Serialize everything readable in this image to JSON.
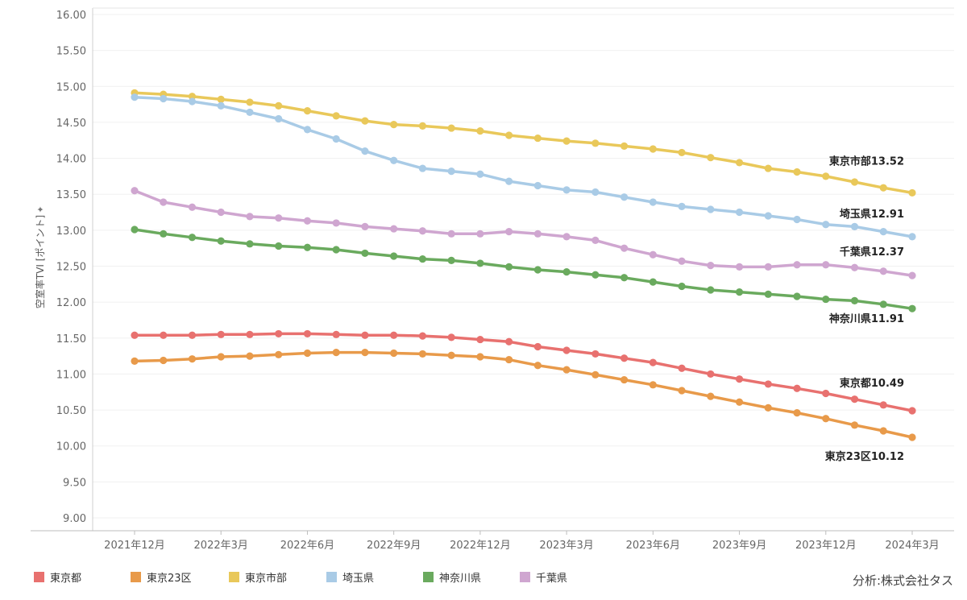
{
  "chart_data": {
    "type": "line",
    "ylabel": "空室率TVI [ポイント]",
    "ylim": [
      8.8,
      16.1
    ],
    "yticks": [
      "16.00",
      "15.50",
      "15.00",
      "14.50",
      "14.00",
      "13.50",
      "13.00",
      "12.50",
      "12.00",
      "11.50",
      "11.00",
      "10.50",
      "10.00",
      "9.50",
      "9.00"
    ],
    "x": [
      "2021-12",
      "2022-01",
      "2022-02",
      "2022-03",
      "2022-04",
      "2022-05",
      "2022-06",
      "2022-07",
      "2022-08",
      "2022-09",
      "2022-10",
      "2022-11",
      "2022-12",
      "2023-01",
      "2023-02",
      "2023-03",
      "2023-04",
      "2023-05",
      "2023-06",
      "2023-07",
      "2023-08",
      "2023-09",
      "2023-10",
      "2023-11",
      "2023-12",
      "2024-01",
      "2024-02",
      "2024-03"
    ],
    "xticks": [
      {
        "index": 0,
        "label": "2021年12月"
      },
      {
        "index": 3,
        "label": "2022年3月"
      },
      {
        "index": 6,
        "label": "2022年6月"
      },
      {
        "index": 9,
        "label": "2022年9月"
      },
      {
        "index": 12,
        "label": "2022年12月"
      },
      {
        "index": 15,
        "label": "2023年3月"
      },
      {
        "index": 18,
        "label": "2023年6月"
      },
      {
        "index": 21,
        "label": "2023年9月"
      },
      {
        "index": 24,
        "label": "2023年12月"
      },
      {
        "index": 27,
        "label": "2024年3月"
      }
    ],
    "series": [
      {
        "name": "東京都",
        "color": "#e8716f",
        "end_label": "東京都10.49",
        "values": [
          11.54,
          11.54,
          11.54,
          11.55,
          11.55,
          11.56,
          11.56,
          11.55,
          11.54,
          11.54,
          11.53,
          11.51,
          11.48,
          11.45,
          11.38,
          11.33,
          11.28,
          11.22,
          11.16,
          11.08,
          11.0,
          10.93,
          10.86,
          10.8,
          10.73,
          10.65,
          10.57,
          10.49
        ]
      },
      {
        "name": "東京23区",
        "color": "#e89a4a",
        "end_label": "東京23区10.12",
        "values": [
          11.18,
          11.19,
          11.21,
          11.24,
          11.25,
          11.27,
          11.29,
          11.3,
          11.3,
          11.29,
          11.28,
          11.26,
          11.24,
          11.2,
          11.12,
          11.06,
          10.99,
          10.92,
          10.85,
          10.77,
          10.69,
          10.61,
          10.53,
          10.46,
          10.38,
          10.29,
          10.21,
          10.12
        ]
      },
      {
        "name": "東京市部",
        "color": "#e9c85a",
        "end_label": "東京市部13.52",
        "values": [
          14.91,
          14.89,
          14.86,
          14.82,
          14.78,
          14.73,
          14.66,
          14.59,
          14.52,
          14.47,
          14.45,
          14.42,
          14.38,
          14.32,
          14.28,
          14.24,
          14.21,
          14.17,
          14.13,
          14.08,
          14.01,
          13.94,
          13.86,
          13.81,
          13.75,
          13.67,
          13.59,
          13.52
        ]
      },
      {
        "name": "埼玉県",
        "color": "#a9cbe6",
        "end_label": "埼玉県12.91",
        "values": [
          14.85,
          14.83,
          14.79,
          14.73,
          14.64,
          14.55,
          14.4,
          14.27,
          14.1,
          13.97,
          13.86,
          13.82,
          13.78,
          13.68,
          13.62,
          13.56,
          13.53,
          13.46,
          13.39,
          13.33,
          13.29,
          13.25,
          13.2,
          13.15,
          13.08,
          13.05,
          12.98,
          12.91
        ]
      },
      {
        "name": "神奈川県",
        "color": "#6aaa5e",
        "end_label": "神奈川県11.91",
        "values": [
          13.01,
          12.95,
          12.9,
          12.85,
          12.81,
          12.78,
          12.76,
          12.73,
          12.68,
          12.64,
          12.6,
          12.58,
          12.54,
          12.49,
          12.45,
          12.42,
          12.38,
          12.34,
          12.28,
          12.22,
          12.17,
          12.14,
          12.11,
          12.08,
          12.04,
          12.02,
          11.97,
          11.91
        ]
      },
      {
        "name": "千葉県",
        "color": "#cfa6d0",
        "end_label": "千葉県12.37",
        "values": [
          13.55,
          13.39,
          13.32,
          13.25,
          13.19,
          13.17,
          13.13,
          13.1,
          13.05,
          13.02,
          12.99,
          12.95,
          12.95,
          12.98,
          12.95,
          12.91,
          12.86,
          12.75,
          12.66,
          12.57,
          12.51,
          12.49,
          12.49,
          12.52,
          12.52,
          12.48,
          12.43,
          12.37
        ]
      }
    ],
    "legend": [
      "東京都",
      "東京23区",
      "東京市部",
      "埼玉県",
      "神奈川県",
      "千葉県"
    ],
    "legend_position": "bottom-left",
    "grid": true,
    "credit": "分析:株式会社タス"
  }
}
